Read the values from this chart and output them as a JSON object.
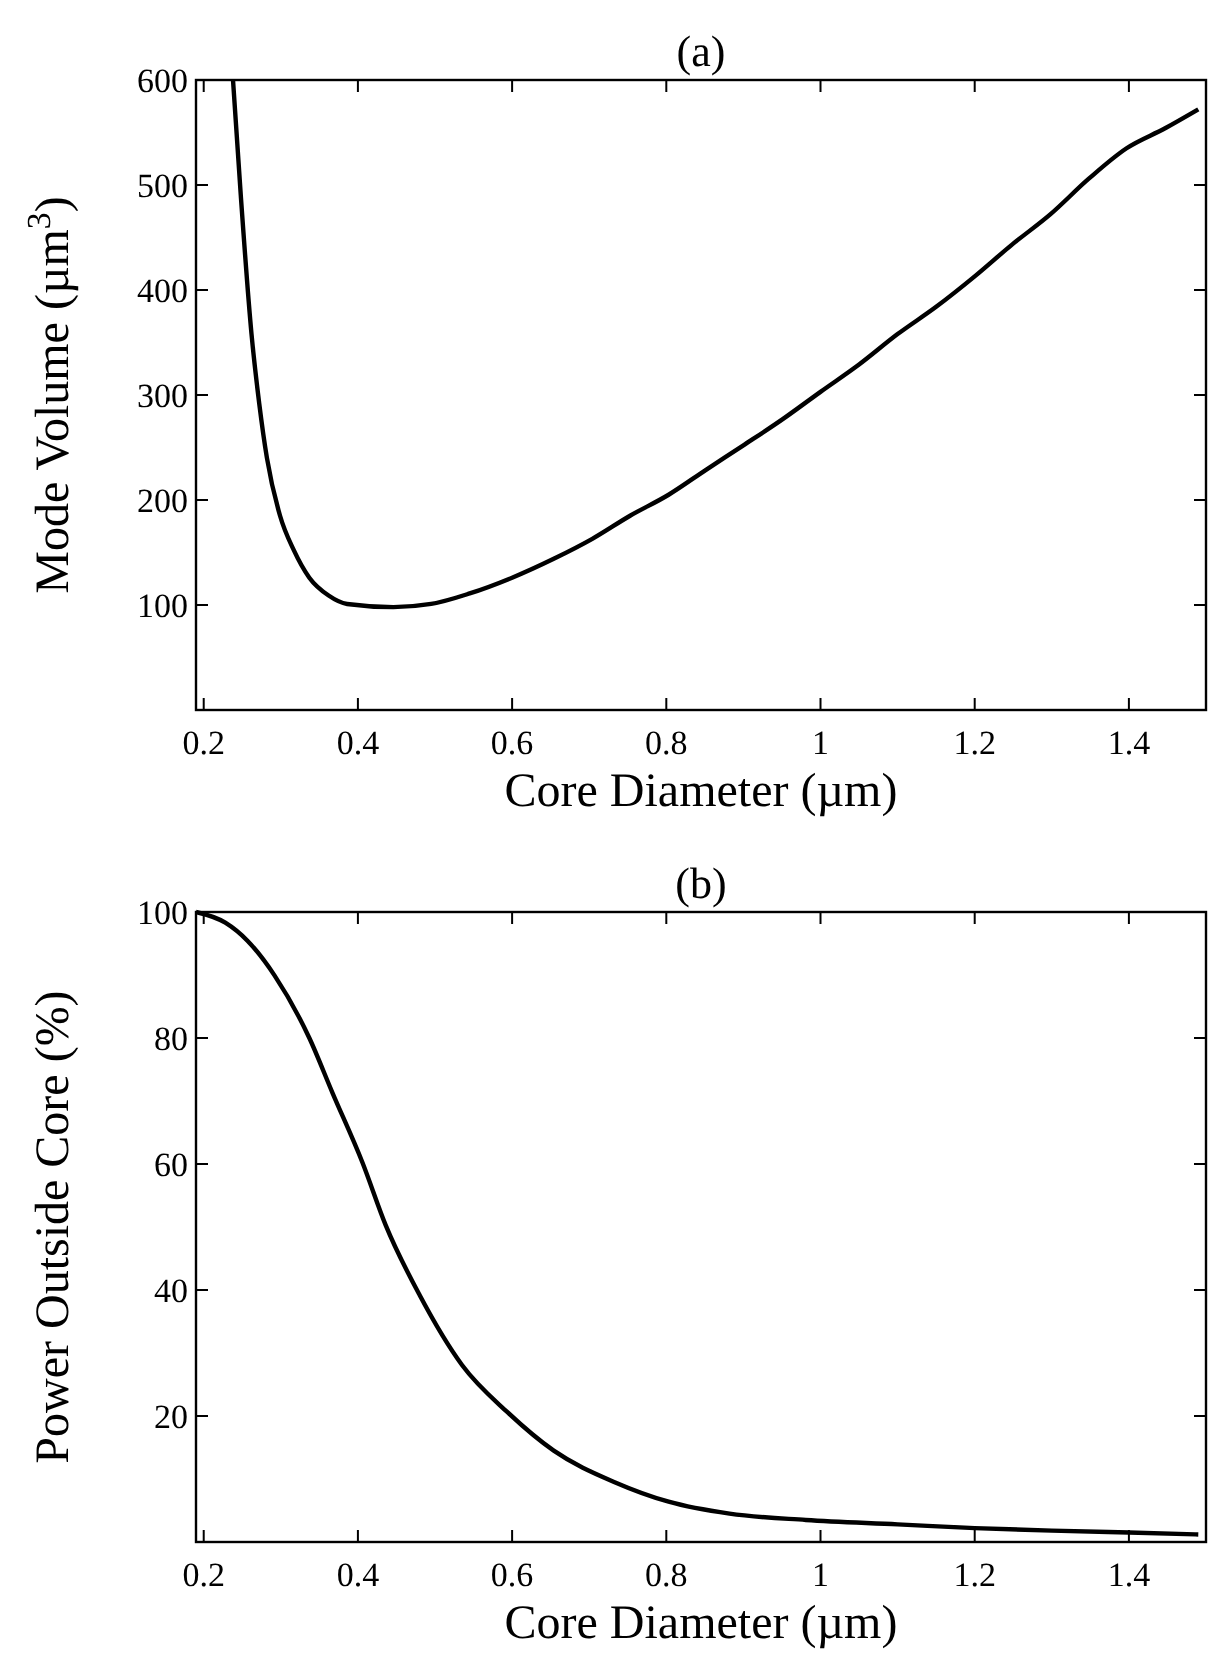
{
  "chart_data": [
    {
      "type": "line",
      "title": "(a)",
      "xlabel": "Core Diameter (µm)",
      "ylabel": "Mode Volume (µm$^{3}$)",
      "xlim": [
        0.19,
        1.5
      ],
      "ylim": [
        0,
        600
      ],
      "xticks": [
        0.2,
        0.4,
        0.6,
        0.8,
        1,
        1.2,
        1.4
      ],
      "yticks": [
        100,
        200,
        300,
        400,
        500,
        600
      ],
      "grid": false,
      "marker": "none",
      "line_style": "solid",
      "series": [
        {
          "color": "#000000",
          "x": [
            0.238,
            0.248,
            0.262,
            0.272,
            0.282,
            0.299,
            0.317,
            0.337,
            0.362,
            0.386,
            0.446,
            0.495,
            0.545,
            0.6,
            0.654,
            0.704,
            0.753,
            0.803,
            0.852,
            0.902,
            0.951,
            1.0,
            1.05,
            1.1,
            1.15,
            1.2,
            1.248,
            1.298,
            1.348,
            1.397,
            1.447,
            1.49
          ],
          "values": [
            600,
            491,
            358,
            292,
            240,
            185,
            152,
            126,
            109,
            101,
            98,
            101,
            111,
            126,
            144,
            163,
            185,
            205,
            229,
            253,
            277,
            303,
            329,
            358,
            384,
            413,
            443,
            472,
            506,
            535,
            554,
            572
          ]
        }
      ]
    },
    {
      "type": "line",
      "title": "(b)",
      "xlabel": "Core Diameter (µm)",
      "ylabel": "Power Outside Core (%)",
      "xlim": [
        0.19,
        1.5
      ],
      "ylim": [
        0,
        100
      ],
      "xticks": [
        0.2,
        0.4,
        0.6,
        0.8,
        1,
        1.2,
        1.4
      ],
      "yticks": [
        20,
        40,
        60,
        80,
        100
      ],
      "grid": false,
      "marker": "none",
      "line_style": "solid",
      "series": [
        {
          "color": "#000000",
          "x": [
            0.19,
            0.228,
            0.257,
            0.292,
            0.337,
            0.367,
            0.406,
            0.436,
            0.48,
            0.535,
            0.594,
            0.654,
            0.733,
            0.803,
            0.882,
            0.981,
            1.1,
            1.2,
            1.3,
            1.4,
            1.49
          ],
          "values": [
            100,
            98.3,
            95.4,
            89.9,
            80,
            71.3,
            60.2,
            50.3,
            39.2,
            28.1,
            20.6,
            14.5,
            9.5,
            6.4,
            4.5,
            3.5,
            2.8,
            2.2,
            1.8,
            1.5,
            1.2
          ]
        }
      ]
    }
  ]
}
